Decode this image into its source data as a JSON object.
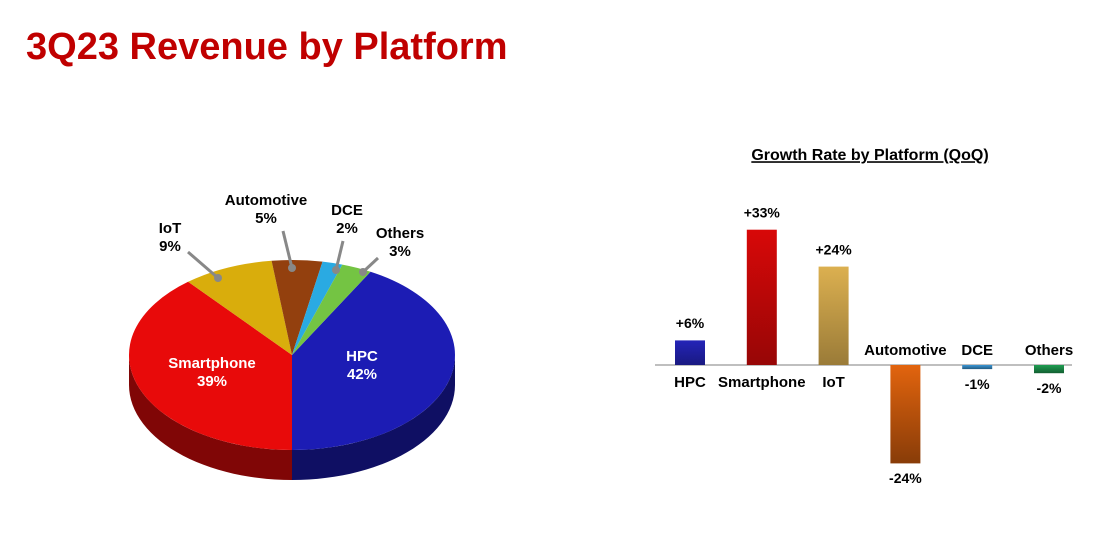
{
  "title": "3Q23 Revenue by Platform",
  "chart_data": [
    {
      "type": "pie",
      "categories": [
        "HPC",
        "Smartphone",
        "IoT",
        "Automotive",
        "DCE",
        "Others"
      ],
      "values": [
        42,
        39,
        9,
        5,
        2,
        3
      ],
      "value_labels": [
        "42%",
        "39%",
        "9%",
        "5%",
        "2%",
        "3%"
      ],
      "colors": [
        "#1c1cb4",
        "#e80a0a",
        "#d9ad0c",
        "#93400e",
        "#2aaae2",
        "#74c443"
      ]
    },
    {
      "type": "bar",
      "title": "Growth Rate by Platform (QoQ)",
      "categories": [
        "HPC",
        "Smartphone",
        "IoT",
        "Automotive",
        "DCE",
        "Others"
      ],
      "values": [
        6,
        33,
        24,
        -24,
        -1,
        -2
      ],
      "value_labels": [
        "+6%",
        "+33%",
        "+24%",
        "-24%",
        "-1%",
        "-2%"
      ],
      "colors": [
        "#2424b8",
        "#d80808",
        "#dcb050",
        "#e2640e",
        "#3a96d6",
        "#1f9e52"
      ]
    }
  ]
}
